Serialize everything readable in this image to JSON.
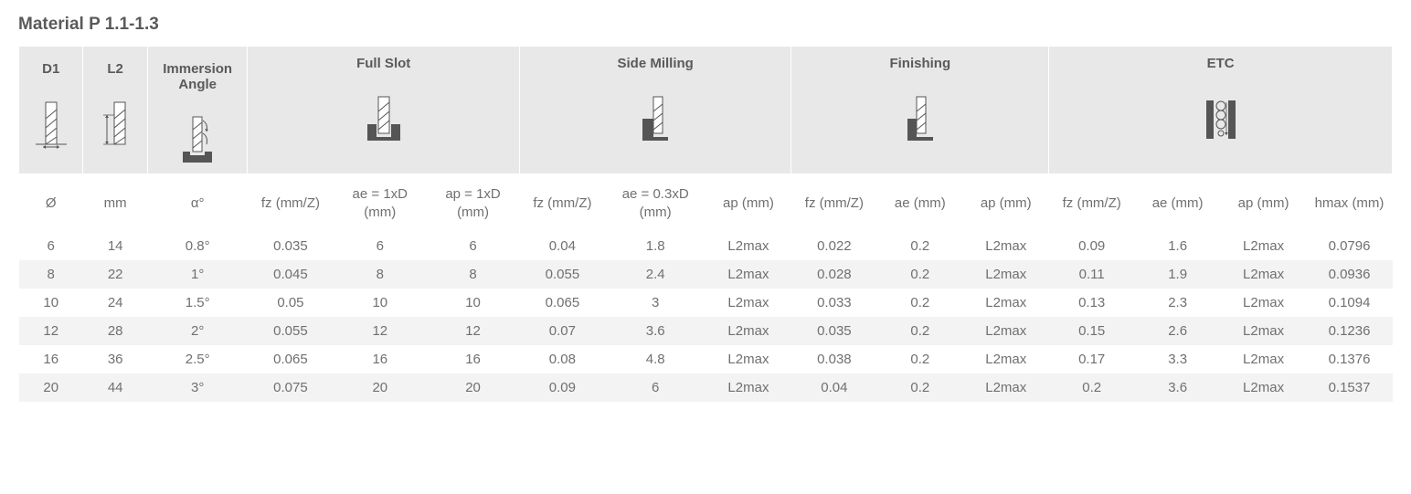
{
  "title": "Material P 1.1-1.3",
  "colors": {
    "header_bg": "#e8e8e8",
    "stripe_bg": "#f3f3f3",
    "text": "#707070",
    "title_text": "#5a5a5a",
    "icon_dark": "#555555",
    "icon_light": "#ffffff"
  },
  "groups": {
    "d1": "D1",
    "l2": "L2",
    "immersion": "Immersion Angle",
    "full_slot": "Full Slot",
    "side_milling": "Side Milling",
    "finishing": "Finishing",
    "etc": "ETC"
  },
  "sub": {
    "d1": "Ø",
    "l2": "mm",
    "immersion": "α°",
    "fs_fz": "fz (mm/Z)",
    "fs_ae": "ae = 1xD (mm)",
    "fs_ap": "ap = 1xD (mm)",
    "sm_fz": "fz (mm/Z)",
    "sm_ae": "ae = 0.3xD (mm)",
    "sm_ap": "ap (mm)",
    "fin_fz": "fz (mm/Z)",
    "fin_ae": "ae (mm)",
    "fin_ap": "ap (mm)",
    "etc_fz": "fz (mm/Z)",
    "etc_ae": "ae (mm)",
    "etc_ap": "ap (mm)",
    "etc_hmax": "hmax (mm)"
  },
  "rows": [
    {
      "d1": "6",
      "l2": "14",
      "imm": "0.8°",
      "fs_fz": "0.035",
      "fs_ae": "6",
      "fs_ap": "6",
      "sm_fz": "0.04",
      "sm_ae": "1.8",
      "sm_ap": "L2max",
      "fin_fz": "0.022",
      "fin_ae": "0.2",
      "fin_ap": "L2max",
      "etc_fz": "0.09",
      "etc_ae": "1.6",
      "etc_ap": "L2max",
      "etc_hmax": "0.0796"
    },
    {
      "d1": "8",
      "l2": "22",
      "imm": "1°",
      "fs_fz": "0.045",
      "fs_ae": "8",
      "fs_ap": "8",
      "sm_fz": "0.055",
      "sm_ae": "2.4",
      "sm_ap": "L2max",
      "fin_fz": "0.028",
      "fin_ae": "0.2",
      "fin_ap": "L2max",
      "etc_fz": "0.11",
      "etc_ae": "1.9",
      "etc_ap": "L2max",
      "etc_hmax": "0.0936"
    },
    {
      "d1": "10",
      "l2": "24",
      "imm": "1.5°",
      "fs_fz": "0.05",
      "fs_ae": "10",
      "fs_ap": "10",
      "sm_fz": "0.065",
      "sm_ae": "3",
      "sm_ap": "L2max",
      "fin_fz": "0.033",
      "fin_ae": "0.2",
      "fin_ap": "L2max",
      "etc_fz": "0.13",
      "etc_ae": "2.3",
      "etc_ap": "L2max",
      "etc_hmax": "0.1094"
    },
    {
      "d1": "12",
      "l2": "28",
      "imm": "2°",
      "fs_fz": "0.055",
      "fs_ae": "12",
      "fs_ap": "12",
      "sm_fz": "0.07",
      "sm_ae": "3.6",
      "sm_ap": "L2max",
      "fin_fz": "0.035",
      "fin_ae": "0.2",
      "fin_ap": "L2max",
      "etc_fz": "0.15",
      "etc_ae": "2.6",
      "etc_ap": "L2max",
      "etc_hmax": "0.1236"
    },
    {
      "d1": "16",
      "l2": "36",
      "imm": "2.5°",
      "fs_fz": "0.065",
      "fs_ae": "16",
      "fs_ap": "16",
      "sm_fz": "0.08",
      "sm_ae": "4.8",
      "sm_ap": "L2max",
      "fin_fz": "0.038",
      "fin_ae": "0.2",
      "fin_ap": "L2max",
      "etc_fz": "0.17",
      "etc_ae": "3.3",
      "etc_ap": "L2max",
      "etc_hmax": "0.1376"
    },
    {
      "d1": "20",
      "l2": "44",
      "imm": "3°",
      "fs_fz": "0.075",
      "fs_ae": "20",
      "fs_ap": "20",
      "sm_fz": "0.09",
      "sm_ae": "6",
      "sm_ap": "L2max",
      "fin_fz": "0.04",
      "fin_ae": "0.2",
      "fin_ap": "L2max",
      "etc_fz": "0.2",
      "etc_ae": "3.6",
      "etc_ap": "L2max",
      "etc_hmax": "0.1537"
    }
  ],
  "col_widths_pct": [
    4.5,
    4.5,
    7,
    6,
    6.5,
    6.5,
    6,
    7,
    6,
    6,
    6,
    6,
    6,
    6,
    6,
    6
  ],
  "row_keys": [
    "d1",
    "l2",
    "imm",
    "fs_fz",
    "fs_ae",
    "fs_ap",
    "sm_fz",
    "sm_ae",
    "sm_ap",
    "fin_fz",
    "fin_ae",
    "fin_ap",
    "etc_fz",
    "etc_ae",
    "etc_ap",
    "etc_hmax"
  ]
}
